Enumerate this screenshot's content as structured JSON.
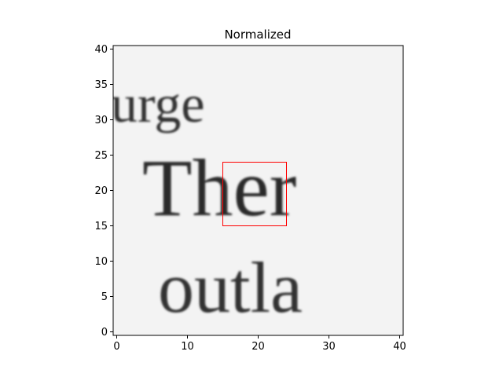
{
  "chart_data": {
    "type": "heatmap",
    "title": "Normalized",
    "colormap": "gray",
    "x_ticks": [
      0,
      10,
      20,
      30,
      40
    ],
    "y_ticks": [
      0,
      5,
      10,
      15,
      20,
      25,
      30,
      35,
      40
    ],
    "xlim": [
      -0.5,
      40.5
    ],
    "ylim": [
      40.5,
      -0.5
    ],
    "image_size": [
      41,
      41
    ],
    "image_content_text": [
      "urge",
      "Ther",
      "outla"
    ],
    "highlight_box": {
      "x_range": [
        15,
        24
      ],
      "y_range": [
        15,
        24
      ],
      "color": "#ff0000"
    }
  }
}
